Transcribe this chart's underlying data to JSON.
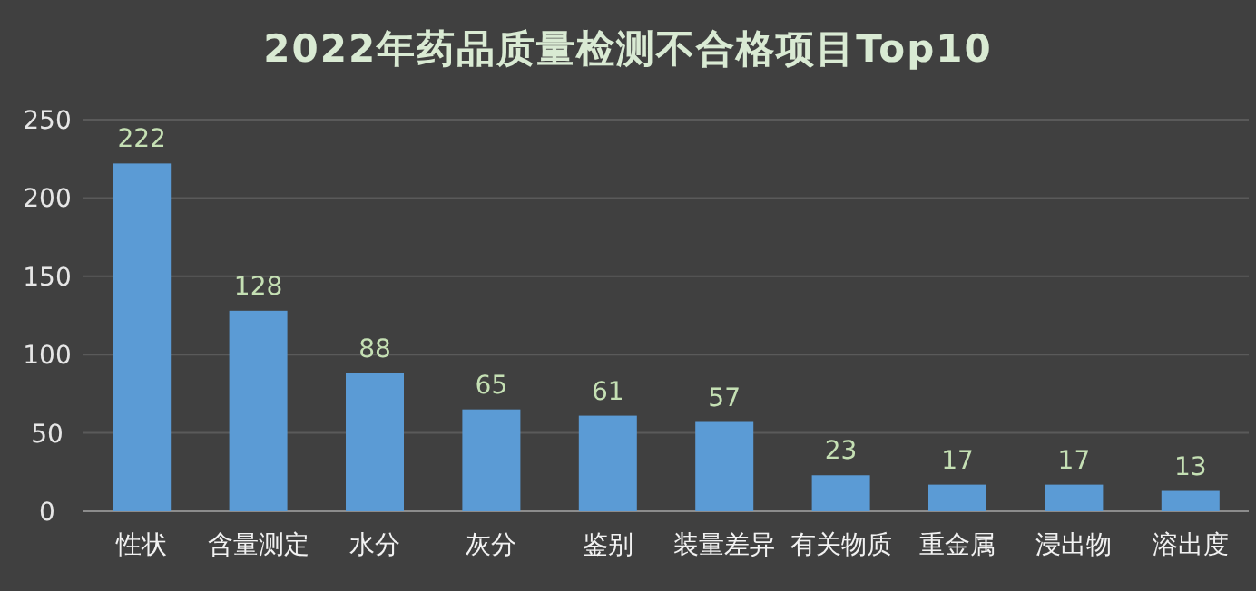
{
  "chart_data": {
    "type": "bar",
    "title": "2022年药品质量检测不合格项目Top10",
    "categories": [
      "性状",
      "含量测定",
      "水分",
      "灰分",
      "鉴别",
      "装量差异",
      "有关物质",
      "重金属",
      "浸出物",
      "溶出度"
    ],
    "values": [
      222,
      128,
      88,
      65,
      61,
      57,
      23,
      17,
      17,
      13
    ],
    "color": "#5b9bd5",
    "ylim": [
      0,
      250
    ],
    "yticks": [
      0,
      50,
      100,
      150,
      200,
      250
    ],
    "grid": "y",
    "data_labels": true
  }
}
